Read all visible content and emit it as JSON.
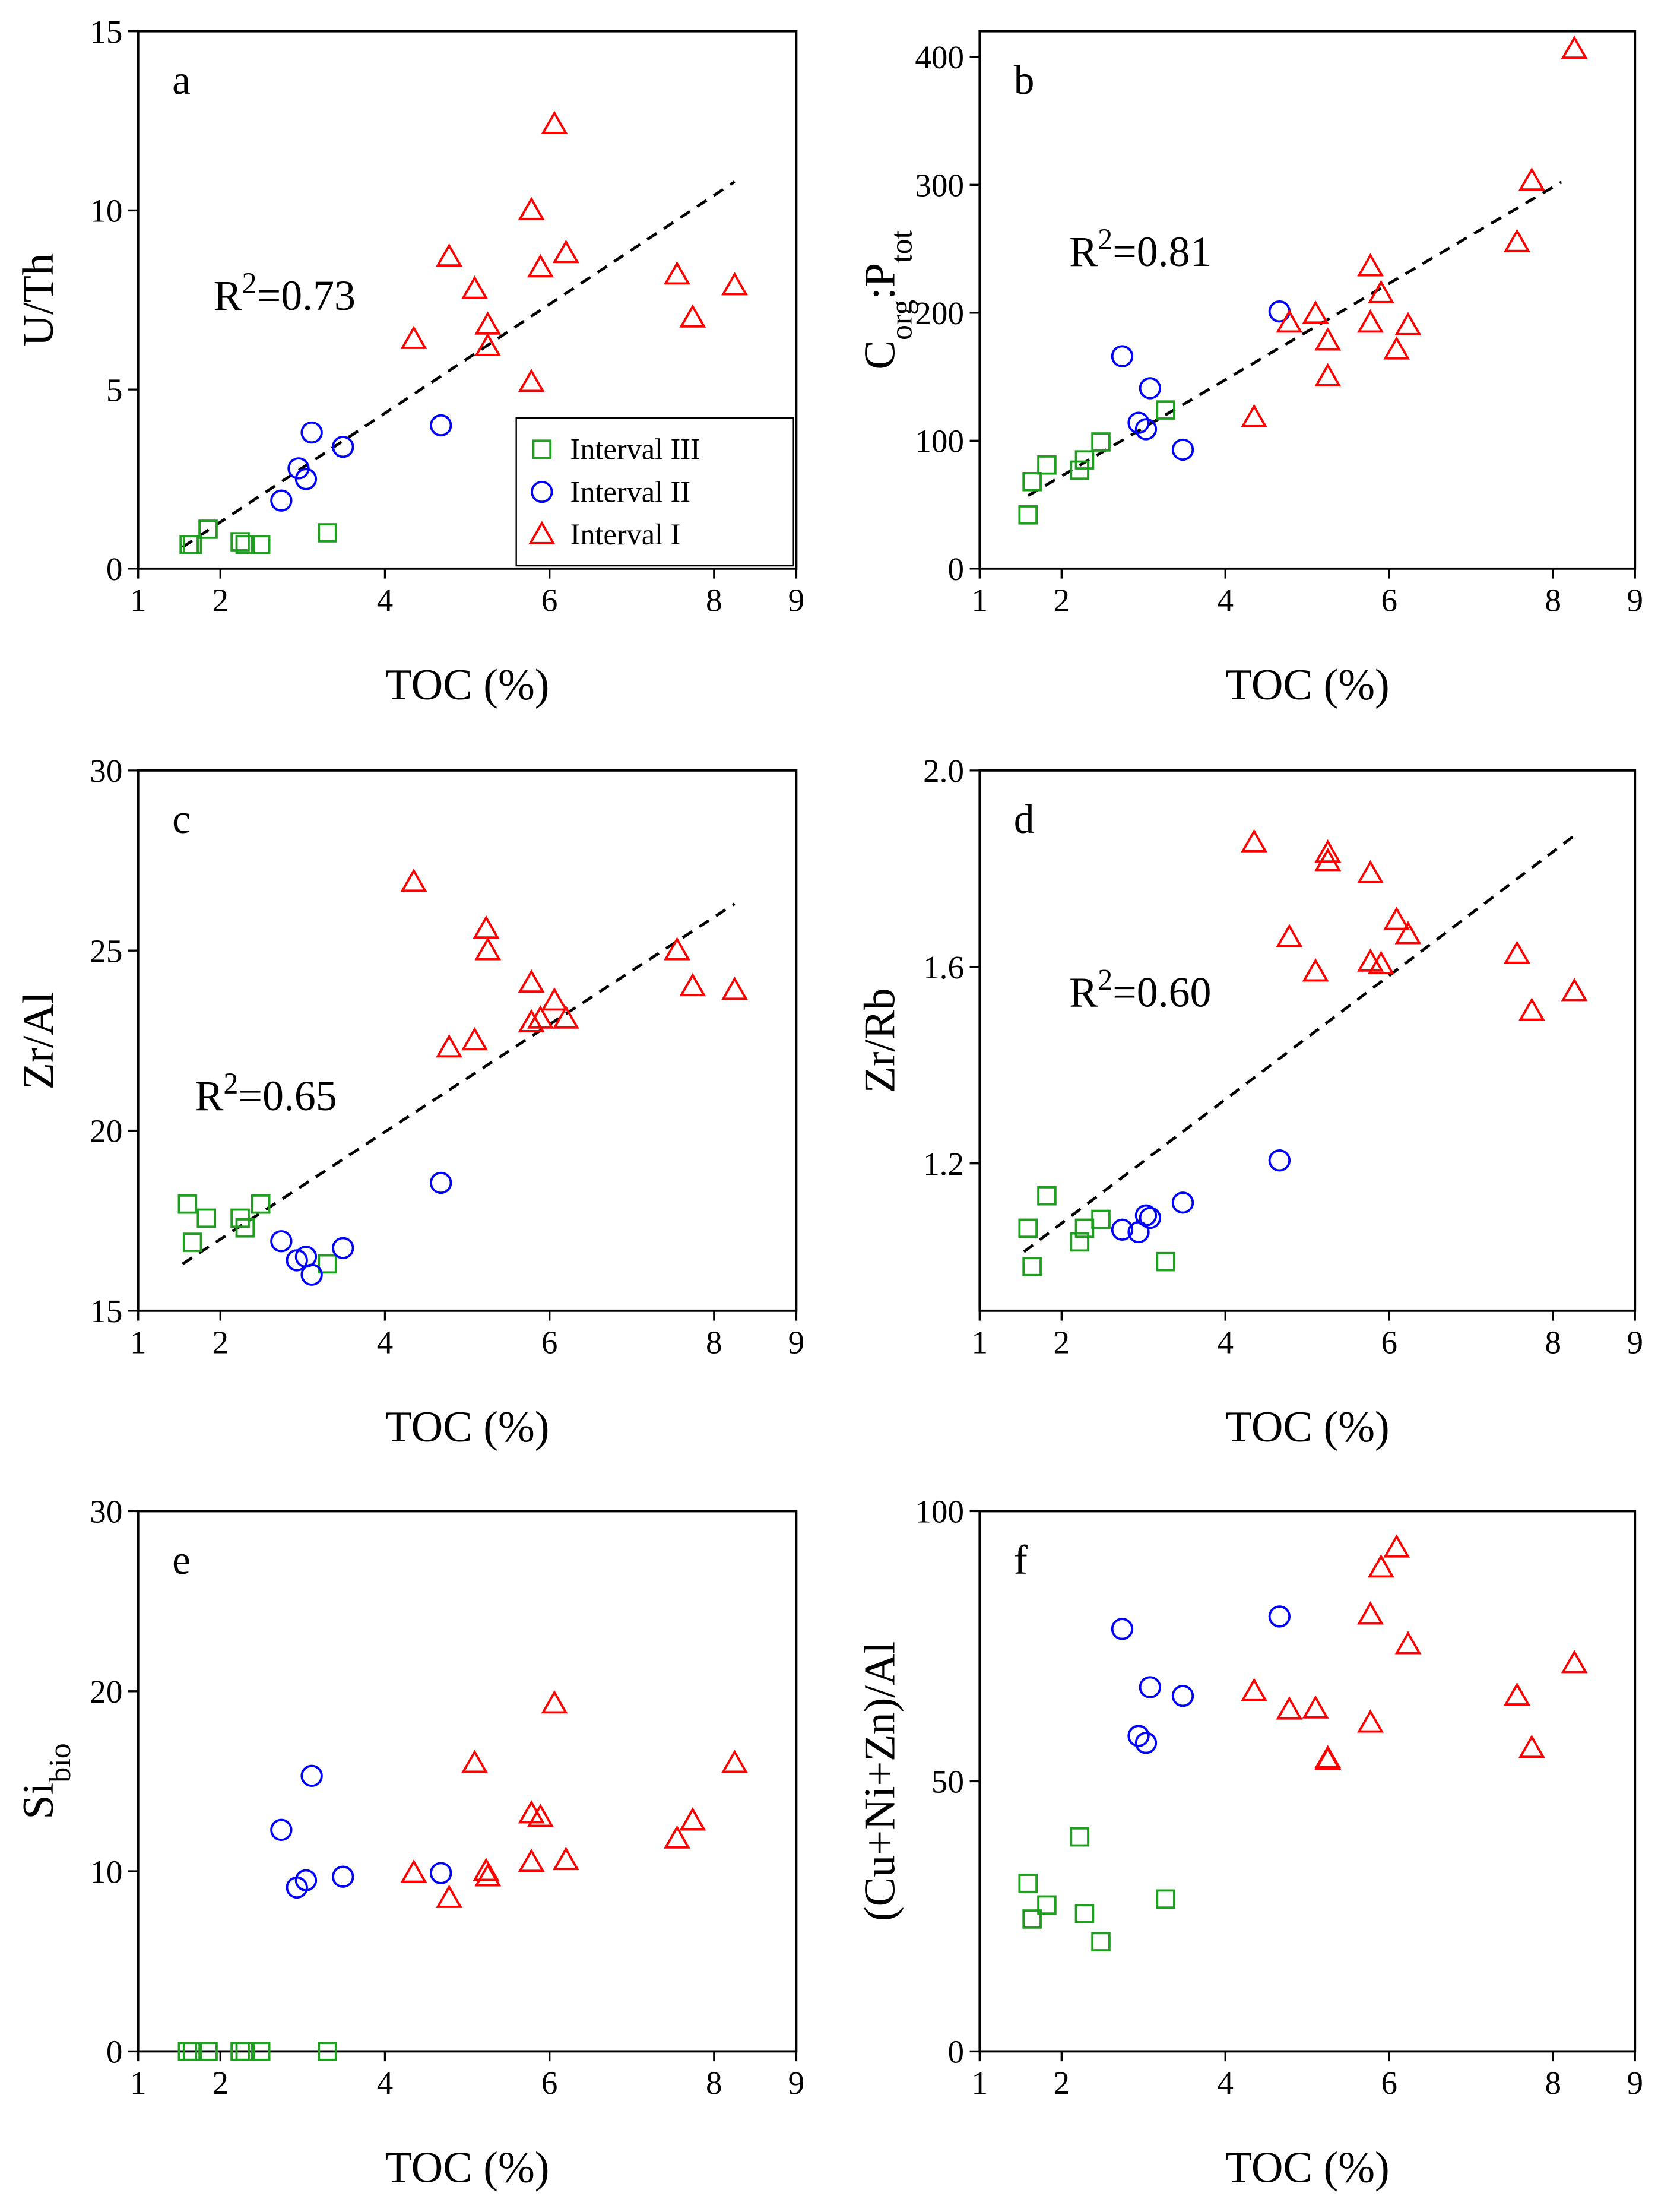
{
  "chart_data": [
    {
      "type": "scatter",
      "panel_label": "a",
      "xlabel": "TOC (%)",
      "ylabel": "U/Th",
      "xlim": [
        1,
        9
      ],
      "xticks": [
        1,
        2,
        4,
        6,
        8,
        9
      ],
      "ylim": [
        0,
        15
      ],
      "yticks": [
        0,
        5,
        10,
        15
      ],
      "legend": "lower right",
      "series": [
        {
          "name": "Interval III",
          "color": "#1f9e1f",
          "marker": "square",
          "x": [
            1.62,
            1.66,
            1.85,
            2.24,
            2.3,
            2.49,
            3.3
          ],
          "values": [
            0.67,
            0.67,
            1.1,
            0.75,
            0.67,
            0.67,
            1.0
          ]
        },
        {
          "name": "Interval II",
          "color": "#0000ff",
          "marker": "circle",
          "x": [
            2.74,
            2.95,
            3.04,
            3.11,
            3.49,
            4.68
          ],
          "values": [
            1.9,
            2.8,
            2.5,
            3.8,
            3.4,
            4.0
          ]
        },
        {
          "name": "Interval I",
          "color": "#ff0000",
          "marker": "triangle",
          "x": [
            4.35,
            4.78,
            5.09,
            5.25,
            5.25,
            5.78,
            5.78,
            5.89,
            6.06,
            6.2,
            7.55,
            7.74,
            8.25
          ],
          "values": [
            6.4,
            8.7,
            7.8,
            6.8,
            6.2,
            10.0,
            5.2,
            8.4,
            12.4,
            8.8,
            8.2,
            7.0,
            7.9
          ]
        }
      ],
      "trendline": {
        "x": [
          1.54,
          8.25
        ],
        "y": [
          0.6,
          10.8
        ]
      },
      "annotation": [
        {
          "text": "R"
        },
        {
          "text": "2",
          "sup": true
        },
        {
          "text": "=0.73"
        }
      ]
    },
    {
      "type": "scatter",
      "panel_label": "b",
      "xlabel": "TOC (%)",
      "ylabel": [
        {
          "text": "C"
        },
        {
          "text": "org",
          "sub": true
        },
        {
          "text": ":P"
        },
        {
          "text": "tot",
          "sub": true
        }
      ],
      "xlim": [
        1,
        9
      ],
      "xticks": [
        1,
        2,
        4,
        6,
        8,
        9
      ],
      "ylim": [
        0,
        420
      ],
      "yticks": [
        0,
        100,
        200,
        300,
        400
      ],
      "series": [
        {
          "color": "#1f9e1f",
          "marker": "square",
          "x": [
            1.59,
            1.64,
            1.82,
            2.22,
            2.28,
            2.48,
            3.27
          ],
          "values": [
            42,
            68,
            81,
            77,
            85,
            99,
            124
          ]
        },
        {
          "color": "#0000ff",
          "marker": "circle",
          "x": [
            2.74,
            2.94,
            3.03,
            3.08,
            3.48,
            4.66
          ],
          "values": [
            166,
            114,
            109,
            141,
            93,
            201
          ]
        },
        {
          "color": "#ff0000",
          "marker": "triangle",
          "x": [
            4.35,
            4.78,
            5.1,
            5.25,
            5.25,
            5.77,
            5.77,
            5.9,
            6.09,
            6.23,
            7.56,
            7.74,
            8.26
          ],
          "values": [
            118,
            192,
            199,
            178,
            150,
            236,
            192,
            215,
            171,
            190,
            255,
            303,
            406
          ]
        }
      ],
      "trendline": {
        "x": [
          1.59,
          8.1
        ],
        "y": [
          57,
          302
        ]
      },
      "annotation": [
        {
          "text": "R"
        },
        {
          "text": "2",
          "sup": true
        },
        {
          "text": "=0.81"
        }
      ]
    },
    {
      "type": "scatter",
      "panel_label": "c",
      "xlabel": "TOC (%)",
      "ylabel": "Zr/Al",
      "xlim": [
        1,
        9
      ],
      "xticks": [
        1,
        2,
        4,
        6,
        8,
        9
      ],
      "ylim": [
        15,
        30
      ],
      "yticks": [
        15,
        20,
        25,
        30
      ],
      "series": [
        {
          "color": "#1f9e1f",
          "marker": "square",
          "x": [
            1.6,
            1.66,
            1.83,
            2.24,
            2.3,
            2.49,
            3.3
          ],
          "values": [
            17.96,
            16.9,
            17.57,
            17.57,
            17.3,
            17.96,
            16.3
          ]
        },
        {
          "color": "#0000ff",
          "marker": "circle",
          "x": [
            2.74,
            2.93,
            3.04,
            3.11,
            3.49,
            4.68
          ],
          "values": [
            16.93,
            16.4,
            16.5,
            16.0,
            16.74,
            18.55
          ]
        },
        {
          "color": "#ff0000",
          "marker": "triangle",
          "x": [
            4.35,
            4.78,
            5.09,
            5.23,
            5.25,
            5.78,
            5.78,
            5.89,
            6.06,
            6.2,
            7.55,
            7.74,
            8.25
          ],
          "values": [
            26.9,
            22.3,
            22.5,
            25.6,
            25.0,
            24.1,
            23.0,
            23.1,
            23.6,
            23.1,
            25.0,
            24.0,
            23.9
          ]
        }
      ],
      "trendline": {
        "x": [
          1.54,
          8.25
        ],
        "y": [
          16.3,
          26.3
        ]
      },
      "annotation": [
        {
          "text": "R"
        },
        {
          "text": "2",
          "sup": true
        },
        {
          "text": "=0.65"
        }
      ]
    },
    {
      "type": "scatter",
      "panel_label": "d",
      "xlabel": "TOC (%)",
      "ylabel": "Zr/Rb",
      "xlim": [
        1,
        9
      ],
      "xticks": [
        1,
        2,
        4,
        6,
        8,
        9
      ],
      "ylim": [
        0.9,
        2.0
      ],
      "yticks": [
        1.2,
        1.6,
        {
          "value": 2,
          "label": "2.0"
        }
      ],
      "series": [
        {
          "color": "#1f9e1f",
          "marker": "square",
          "x": [
            1.59,
            1.64,
            1.82,
            2.22,
            2.28,
            2.48,
            3.27
          ],
          "values": [
            1.068,
            0.99,
            1.134,
            1.04,
            1.068,
            1.086,
            1.0
          ]
        },
        {
          "color": "#0000ff",
          "marker": "circle",
          "x": [
            2.74,
            2.94,
            3.03,
            3.08,
            3.48,
            4.66
          ],
          "values": [
            1.065,
            1.06,
            1.094,
            1.089,
            1.12,
            1.206
          ]
        },
        {
          "color": "#ff0000",
          "marker": "triangle",
          "x": [
            4.35,
            4.78,
            5.1,
            5.25,
            5.25,
            5.77,
            5.77,
            5.9,
            6.09,
            6.23,
            7.56,
            7.74,
            8.26
          ],
          "values": [
            1.853,
            1.66,
            1.59,
            1.832,
            1.815,
            1.79,
            1.61,
            1.605,
            1.695,
            1.666,
            1.626,
            1.51,
            1.55
          ]
        }
      ],
      "trendline": {
        "x": [
          1.54,
          8.28
        ],
        "y": [
          1.02,
          1.87
        ]
      },
      "annotation": [
        {
          "text": "R"
        },
        {
          "text": "2",
          "sup": true
        },
        {
          "text": "=0.60"
        }
      ]
    },
    {
      "type": "scatter",
      "panel_label": "e",
      "xlabel": "TOC (%)",
      "ylabel": [
        {
          "text": "Si"
        },
        {
          "text": "bio",
          "sub": true
        }
      ],
      "xlim": [
        1,
        9
      ],
      "xticks": [
        1,
        2,
        4,
        6,
        8,
        9
      ],
      "ylim": [
        0,
        30
      ],
      "yticks": [
        0,
        10,
        20,
        30
      ],
      "series": [
        {
          "color": "#1f9e1f",
          "marker": "square",
          "x": [
            1.6,
            1.66,
            1.85,
            2.24,
            2.3,
            2.49,
            3.3
          ],
          "values": [
            0,
            0,
            0,
            0,
            0,
            0,
            0
          ]
        },
        {
          "color": "#0000ff",
          "marker": "circle",
          "x": [
            2.74,
            2.93,
            3.04,
            3.11,
            3.49,
            4.68
          ],
          "values": [
            12.3,
            9.1,
            9.5,
            15.3,
            9.7,
            9.9
          ]
        },
        {
          "color": "#ff0000",
          "marker": "triangle",
          "x": [
            4.35,
            4.78,
            5.09,
            5.23,
            5.25,
            5.78,
            5.78,
            5.89,
            6.06,
            6.2,
            7.55,
            7.74,
            8.25
          ],
          "values": [
            9.9,
            8.5,
            16.0,
            10.0,
            9.7,
            13.2,
            10.5,
            13.0,
            19.3,
            10.6,
            11.8,
            12.8,
            16.0
          ]
        }
      ]
    },
    {
      "type": "scatter",
      "panel_label": "f",
      "xlabel": "TOC (%)",
      "ylabel": "(Cu+Ni+Zn)/Al",
      "xlim": [
        1,
        9
      ],
      "xticks": [
        1,
        2,
        4,
        6,
        8,
        9
      ],
      "ylim": [
        0,
        100
      ],
      "yticks": [
        0,
        50,
        100
      ],
      "series": [
        {
          "color": "#1f9e1f",
          "marker": "square",
          "x": [
            1.59,
            1.64,
            1.82,
            2.22,
            2.28,
            2.48,
            3.27
          ],
          "values": [
            31.1,
            24.5,
            27.1,
            39.7,
            25.5,
            20.3,
            28.2
          ]
        },
        {
          "color": "#0000ff",
          "marker": "circle",
          "x": [
            2.74,
            2.94,
            3.03,
            3.08,
            3.48,
            4.66
          ],
          "values": [
            78.2,
            58.4,
            57.1,
            67.4,
            65.8,
            80.5
          ]
        },
        {
          "color": "#ff0000",
          "marker": "triangle",
          "x": [
            4.35,
            4.78,
            5.1,
            5.25,
            5.25,
            5.77,
            5.77,
            5.9,
            6.09,
            6.23,
            7.56,
            7.74,
            8.26
          ],
          "values": [
            66.6,
            63.2,
            63.4,
            54.2,
            53.9,
            80.8,
            60.8,
            89.5,
            93.2,
            75.3,
            65.8,
            56.1,
            71.8
          ]
        }
      ]
    }
  ]
}
